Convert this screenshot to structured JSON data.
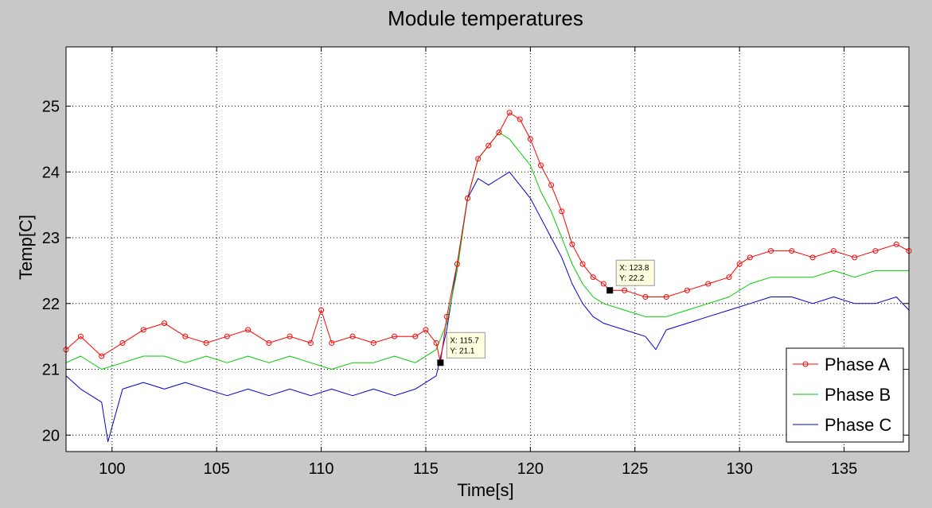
{
  "chart_data": {
    "type": "line",
    "title": "Module temperatures",
    "xlabel": "Time[s]",
    "ylabel": "Temp[C]",
    "xlim": [
      97.8,
      138.1
    ],
    "ylim": [
      19.75,
      25.9
    ],
    "xticks": [
      100,
      105,
      110,
      115,
      120,
      125,
      130,
      135
    ],
    "yticks": [
      20,
      21,
      22,
      23,
      24,
      25
    ],
    "grid": true,
    "legend_position": "bottom-right",
    "series": [
      {
        "name": "Phase A",
        "color": "#ff0000",
        "marker": "circle",
        "x": [
          97.8,
          98.5,
          99.5,
          100.5,
          101.5,
          102.5,
          103.5,
          104.5,
          105.5,
          106.5,
          107.5,
          108.5,
          109.5,
          110,
          110.5,
          111.5,
          112.5,
          113.5,
          114.5,
          115,
          115.5,
          115.7,
          116,
          116.5,
          117,
          117.5,
          118,
          118.5,
          119,
          119.5,
          120,
          120.5,
          121,
          121.5,
          122,
          122.5,
          123,
          123.5,
          123.8,
          124.5,
          125.5,
          126.5,
          127.5,
          128.5,
          129.5,
          130,
          130.5,
          131.5,
          132.5,
          133.5,
          134.5,
          135.5,
          136.5,
          137.5,
          138.1
        ],
        "y": [
          21.3,
          21.5,
          21.2,
          21.4,
          21.6,
          21.7,
          21.5,
          21.4,
          21.5,
          21.6,
          21.4,
          21.5,
          21.4,
          21.9,
          21.4,
          21.5,
          21.4,
          21.5,
          21.5,
          21.6,
          21.4,
          21.1,
          21.8,
          22.6,
          23.6,
          24.2,
          24.4,
          24.6,
          24.9,
          24.8,
          24.5,
          24.1,
          23.8,
          23.4,
          22.9,
          22.6,
          22.4,
          22.3,
          22.2,
          22.2,
          22.1,
          22.1,
          22.2,
          22.3,
          22.4,
          22.6,
          22.7,
          22.8,
          22.8,
          22.7,
          22.8,
          22.7,
          22.8,
          22.9,
          22.8
        ]
      },
      {
        "name": "Phase B",
        "color": "#00cc00",
        "x": [
          97.8,
          98.5,
          99.5,
          100.5,
          101.5,
          102.5,
          103.5,
          104.5,
          105.5,
          106.5,
          107.5,
          108.5,
          109.5,
          110.5,
          111.5,
          112.5,
          113.5,
          114.5,
          115.5,
          116,
          116.5,
          117,
          117.5,
          118,
          118.5,
          119,
          119.5,
          120,
          120.5,
          121,
          121.5,
          122,
          122.5,
          123,
          123.5,
          124.5,
          125.5,
          126.5,
          127.5,
          128.5,
          129.5,
          130.5,
          131.5,
          132.5,
          133.5,
          134.5,
          135.5,
          136.5,
          137.5,
          138.1
        ],
        "y": [
          21.1,
          21.2,
          21.0,
          21.1,
          21.2,
          21.2,
          21.1,
          21.2,
          21.1,
          21.2,
          21.1,
          21.2,
          21.1,
          21.0,
          21.1,
          21.1,
          21.2,
          21.1,
          21.3,
          21.7,
          22.5,
          23.6,
          24.2,
          24.4,
          24.6,
          24.5,
          24.3,
          24.1,
          23.7,
          23.4,
          23.0,
          22.6,
          22.3,
          22.1,
          22.0,
          21.9,
          21.8,
          21.8,
          21.9,
          22.0,
          22.1,
          22.3,
          22.4,
          22.4,
          22.4,
          22.5,
          22.4,
          22.5,
          22.5,
          22.5
        ]
      },
      {
        "name": "Phase C",
        "color": "#0000cc",
        "x": [
          97.8,
          98.5,
          99.5,
          99.8,
          100.5,
          101.5,
          102.5,
          103.5,
          104.5,
          105.5,
          106.5,
          107.5,
          108.5,
          109.5,
          110.5,
          111.5,
          112.5,
          113.5,
          114.5,
          115.5,
          116,
          116.5,
          117,
          117.5,
          118,
          118.5,
          119,
          119.5,
          120,
          120.5,
          121,
          121.5,
          122,
          122.5,
          123,
          123.5,
          124.5,
          125.5,
          126,
          126.5,
          127.5,
          128.5,
          129.5,
          130.5,
          131.5,
          132.5,
          133.5,
          134.5,
          135.5,
          136.5,
          137.5,
          138.1
        ],
        "y": [
          20.9,
          20.7,
          20.5,
          19.9,
          20.7,
          20.8,
          20.7,
          20.8,
          20.7,
          20.6,
          20.7,
          20.6,
          20.7,
          20.6,
          20.7,
          20.6,
          20.7,
          20.6,
          20.7,
          20.9,
          21.6,
          22.6,
          23.6,
          23.9,
          23.8,
          23.9,
          24.0,
          23.8,
          23.6,
          23.3,
          23.0,
          22.7,
          22.3,
          22.0,
          21.8,
          21.7,
          21.6,
          21.5,
          21.3,
          21.6,
          21.7,
          21.8,
          21.9,
          22.0,
          22.1,
          22.1,
          22.0,
          22.1,
          22.0,
          22.0,
          22.1,
          21.9
        ]
      }
    ],
    "data_tips": [
      {
        "x": 115.7,
        "y": 21.1,
        "x_label": "X: 115.7",
        "y_label": "Y: 21.1"
      },
      {
        "x": 123.8,
        "y": 22.2,
        "x_label": "X: 123.8",
        "y_label": "Y: 22.2"
      }
    ]
  },
  "colors": {
    "figure_background": "#c8c8c8",
    "axes_background": "#ffffff",
    "grid": "#000000",
    "data_tip_fill": "#ffffe0"
  }
}
